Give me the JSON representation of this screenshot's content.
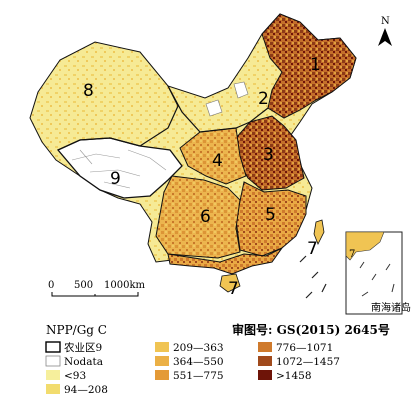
{
  "map": {
    "north_label": "N",
    "region_labels": [
      "1",
      "2",
      "3",
      "4",
      "5",
      "6",
      "7",
      "8",
      "9"
    ],
    "island_label": "7",
    "inset_label": "南海诸岛",
    "inset_number": "7",
    "scale": {
      "ticks": [
        "0",
        "500",
        "1000km"
      ]
    },
    "approval_number": "审图号: GS(2015) 2645号"
  },
  "legend": {
    "title": "NPP/Gg C",
    "boundary_label": "农业区9",
    "nodata_label": "Nodata",
    "classes": [
      {
        "label": "<93",
        "color": "#f6ef9c"
      },
      {
        "label": "94—208",
        "color": "#f2dc6e"
      },
      {
        "label": "209—363",
        "color": "#f0c453"
      },
      {
        "label": "364—550",
        "color": "#ebb046"
      },
      {
        "label": "551—775",
        "color": "#e49a37"
      },
      {
        "label": "776—1071",
        "color": "#cf7a2c"
      },
      {
        "label": "1072—1457",
        "color": "#a04a1c"
      },
      {
        "label": ">1458",
        "color": "#6e1408"
      }
    ]
  }
}
